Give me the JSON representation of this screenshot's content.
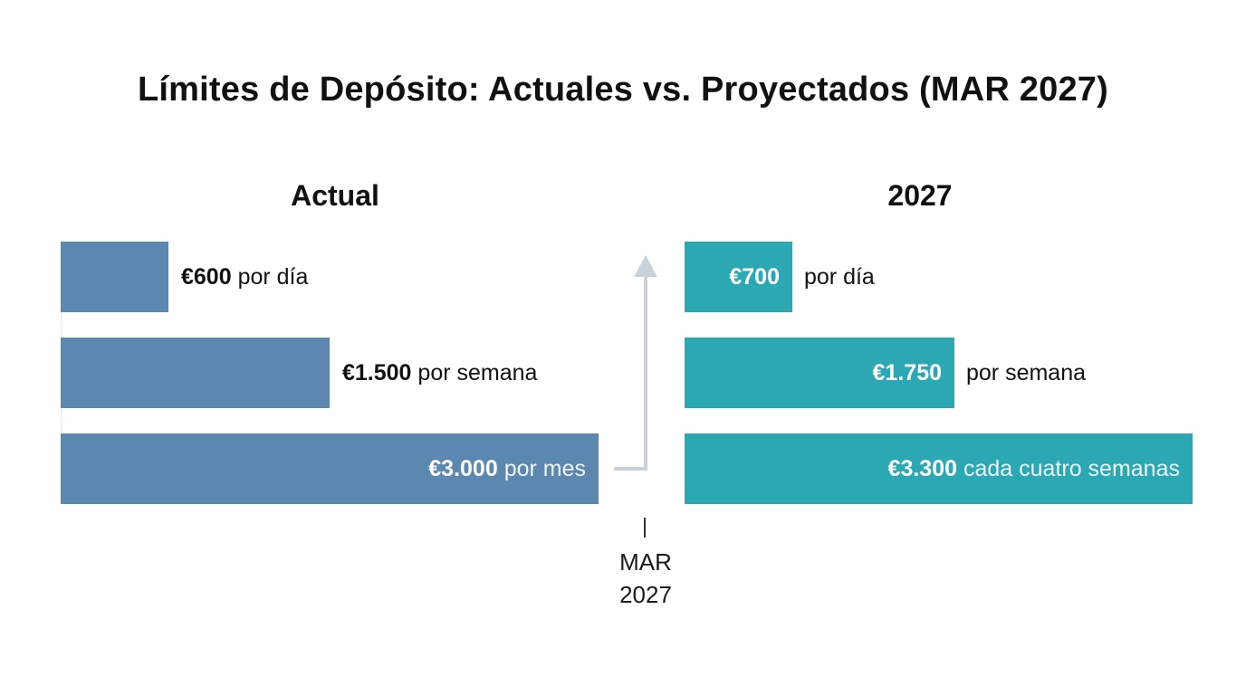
{
  "chart_data": {
    "type": "bar",
    "orientation": "horizontal",
    "title": "Límites de Depósito: Actuales vs. Proyectados (MAR 2027)",
    "panels": [
      {
        "heading": "Actual",
        "color": "#5b87b1",
        "bars": [
          {
            "amount": "€600",
            "unit": "por día",
            "value": 600
          },
          {
            "amount": "€1.500",
            "unit": "por semana",
            "value": 1500
          },
          {
            "amount": "€3.000",
            "unit": "por mes",
            "value": 3000
          }
        ]
      },
      {
        "heading": "2027",
        "color": "#2ba8b3",
        "bars": [
          {
            "amount": "€700",
            "unit": "por día",
            "value": 700
          },
          {
            "amount": "€1.750",
            "unit": "por semana",
            "value": 1750
          },
          {
            "amount": "€3.300",
            "unit": "cada cuatro semanas",
            "value": 3300
          }
        ]
      }
    ],
    "transition_label_line1": "MAR",
    "transition_label_line2": "2027",
    "arrow_color": "#c9d2d9"
  }
}
